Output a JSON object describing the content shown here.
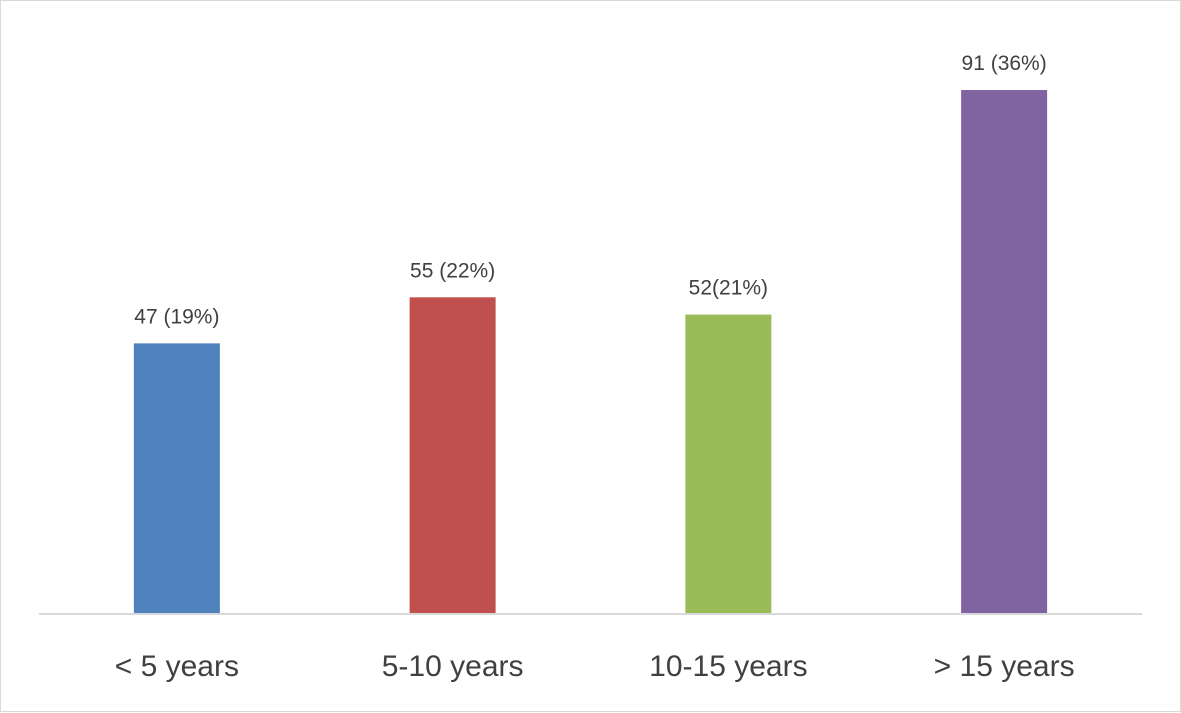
{
  "chart_data": {
    "type": "bar",
    "categories": [
      "< 5 years",
      "5-10 years",
      "10-15 years",
      "> 15 years"
    ],
    "values": [
      47,
      55,
      52,
      91
    ],
    "data_labels": [
      "47 (19%)",
      "55 (22%)",
      "52(21%)",
      "91 (36%)"
    ],
    "colors": [
      "#4f81bd",
      "#c0504d",
      "#9bbb59",
      "#8064a2"
    ],
    "axis_color": "#d9d9d9",
    "title": "",
    "xlabel": "",
    "ylabel": "",
    "ylim": [
      0,
      91
    ],
    "grid": false,
    "legend": "none"
  }
}
